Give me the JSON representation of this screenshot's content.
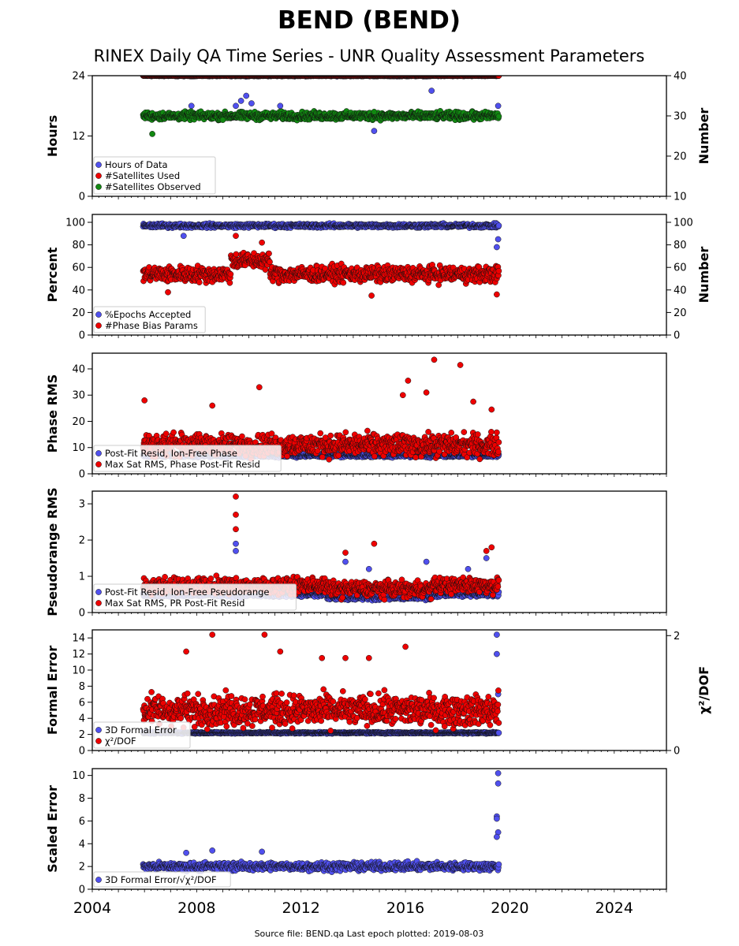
{
  "title": "BEND (BEND)",
  "subtitle": "RINEX Daily QA Time Series - UNR Quality Assessment Parameters",
  "footer": "Source file: BEND.qa Last epoch plotted: 2019-08-03",
  "colors": {
    "blue": "#5050ee",
    "red": "#ee0000",
    "green": "#118811",
    "frame": "#000000"
  },
  "chart_data": [
    {
      "type": "scatter",
      "xlim": [
        2004,
        2026
      ],
      "x_ticks": [
        "2004",
        "2008",
        "2012",
        "2016",
        "2020",
        "2024"
      ],
      "ylabel": "Hours",
      "ylim": [
        0,
        24
      ],
      "y_ticks": [
        "0",
        "12",
        "24"
      ],
      "ylabel_right": "Number",
      "ylim_right": [
        10,
        40
      ],
      "y_ticks_right": [
        "10",
        "20",
        "30",
        "40"
      ],
      "legend_position": "lower-left",
      "data_range": [
        2005.95,
        2019.59
      ],
      "series": [
        {
          "name": "Hours of Data",
          "color": "#5050ee",
          "axis": "left",
          "base": 24,
          "noise": 0.1,
          "outliers": [
            [
              2009.5,
              18
            ],
            [
              2009.7,
              19
            ],
            [
              2009.9,
              20
            ],
            [
              2010.1,
              18.5
            ],
            [
              2007.8,
              18
            ],
            [
              2011.2,
              18
            ],
            [
              2014.8,
              13
            ],
            [
              2017.0,
              21
            ],
            [
              2019.55,
              18
            ]
          ]
        },
        {
          "name": "#Satellites Used",
          "color": "#ee0000",
          "axis": "right",
          "base": 40,
          "noise": 0.05,
          "outliers": []
        },
        {
          "name": "#Satellites Observed",
          "color": "#118811",
          "axis": "right",
          "base": 30,
          "noise": 0.8,
          "outliers": [
            [
              2006.3,
              25.5
            ],
            [
              2009.0,
              29
            ],
            [
              2014.8,
              31
            ]
          ]
        }
      ]
    },
    {
      "type": "scatter",
      "xlim": [
        2004,
        2026
      ],
      "ylabel": "Percent",
      "ylim": [
        0,
        107
      ],
      "y_ticks": [
        "0",
        "20",
        "40",
        "60",
        "80",
        "100"
      ],
      "ylabel_right": "Number",
      "ylim_right": [
        0,
        107
      ],
      "y_ticks_right": [
        "0",
        "20",
        "40",
        "60",
        "80",
        "100"
      ],
      "legend_position": "lower-left",
      "data_range": [
        2005.95,
        2019.59
      ],
      "series": [
        {
          "name": "%Epochs Accepted",
          "color": "#5050ee",
          "axis": "left",
          "base": 97,
          "noise": 1.5,
          "outliers": [
            [
              2019.5,
              78
            ],
            [
              2019.55,
              85
            ],
            [
              2007.5,
              88
            ]
          ]
        },
        {
          "name": "#Phase Bias Params",
          "color": "#ee0000",
          "axis": "right",
          "base": 54,
          "noise": 6,
          "outliers": [
            [
              2009.5,
              88
            ],
            [
              2010.5,
              82
            ],
            [
              2014.7,
              35
            ],
            [
              2019.5,
              36
            ],
            [
              2006.9,
              38
            ]
          ]
        }
      ]
    },
    {
      "type": "scatter",
      "xlim": [
        2004,
        2026
      ],
      "ylabel": "Phase RMS",
      "ylim": [
        0,
        46
      ],
      "y_ticks": [
        "0",
        "10",
        "20",
        "30",
        "40"
      ],
      "legend_position": "lower-left",
      "data_range": [
        2005.95,
        2019.59
      ],
      "series": [
        {
          "name": "Post-Fit Resid, Ion-Free Phase",
          "color": "#5050ee",
          "axis": "left",
          "base": 7,
          "noise": 0.6,
          "outliers": []
        },
        {
          "name": "Max Sat RMS, Phase Post-Fit Resid",
          "color": "#ee0000",
          "axis": "left",
          "base": 11,
          "noise": 3.5,
          "outliers": [
            [
              2006.0,
              28
            ],
            [
              2008.6,
              26
            ],
            [
              2010.4,
              33
            ],
            [
              2016.1,
              35.5
            ],
            [
              2017.1,
              43.5
            ],
            [
              2018.1,
              41.5
            ],
            [
              2016.8,
              31
            ],
            [
              2015.9,
              30
            ],
            [
              2018.6,
              27.5
            ],
            [
              2019.3,
              24.5
            ]
          ]
        }
      ]
    },
    {
      "type": "scatter",
      "xlim": [
        2004,
        2026
      ],
      "ylabel": "Pseudorange RMS",
      "ylim": [
        0,
        3.35
      ],
      "y_ticks": [
        "0",
        "1",
        "2",
        "3"
      ],
      "legend_position": "lower-left",
      "data_range": [
        2005.95,
        2019.59
      ],
      "series": [
        {
          "name": "Post-Fit Resid, Ion-Free Pseudorange",
          "color": "#5050ee",
          "axis": "left",
          "base": 0.5,
          "noise": 0.06,
          "outliers": [
            [
              2009.5,
              1.9
            ],
            [
              2009.5,
              1.7
            ],
            [
              2013.7,
              1.4
            ],
            [
              2014.6,
              1.2
            ],
            [
              2016.8,
              1.4
            ],
            [
              2018.4,
              1.2
            ],
            [
              2019.1,
              1.5
            ]
          ]
        },
        {
          "name": "Max Sat RMS, PR Post-Fit Resid",
          "color": "#ee0000",
          "axis": "left",
          "base": 0.75,
          "noise": 0.18,
          "outliers": [
            [
              2009.5,
              3.2
            ],
            [
              2009.5,
              2.7
            ],
            [
              2009.5,
              2.3
            ],
            [
              2013.7,
              1.65
            ],
            [
              2014.8,
              1.9
            ],
            [
              2019.3,
              1.8
            ],
            [
              2019.1,
              1.7
            ]
          ]
        }
      ]
    },
    {
      "type": "scatter",
      "xlim": [
        2004,
        2026
      ],
      "ylabel": "Formal Error",
      "ylim": [
        0,
        15
      ],
      "y_ticks": [
        "0",
        "2",
        "4",
        "6",
        "8",
        "10",
        "12",
        "14"
      ],
      "ylabel_right": "χ²/DOF",
      "ylim_right": [
        0,
        2.1
      ],
      "y_ticks_right": [
        "0",
        "2"
      ],
      "legend_position": "lower-left",
      "data_range": [
        2005.95,
        2019.59
      ],
      "series": [
        {
          "name": "3D Formal Error",
          "color": "#5050ee",
          "axis": "left",
          "base": 2.2,
          "noise": 0.08,
          "outliers": [
            [
              2019.5,
              14.4
            ],
            [
              2019.5,
              12
            ],
            [
              2019.55,
              7
            ]
          ]
        },
        {
          "name": "χ²/DOF",
          "color": "#ee0000",
          "axis": "left",
          "base": 5,
          "noise": 1.6,
          "outliers": [
            [
              2008.6,
              14.4
            ],
            [
              2010.6,
              14.4
            ],
            [
              2007.6,
              12.3
            ],
            [
              2011.2,
              12.3
            ],
            [
              2016.0,
              12.9
            ],
            [
              2013.7,
              11.5
            ],
            [
              2014.6,
              11.5
            ],
            [
              2012.8,
              11.5
            ]
          ]
        }
      ]
    },
    {
      "type": "scatter",
      "xlim": [
        2004,
        2026
      ],
      "ylabel": "Scaled Error",
      "ylim": [
        0,
        10.6
      ],
      "y_ticks": [
        "0",
        "2",
        "4",
        "6",
        "8",
        "10"
      ],
      "legend_position": "lower-left",
      "data_range": [
        2005.95,
        2019.59
      ],
      "series": [
        {
          "name": "3D Formal Error/√χ²/DOF",
          "color": "#5050ee",
          "axis": "left",
          "base": 2.0,
          "noise": 0.3,
          "outliers": [
            [
              2019.55,
              10.2
            ],
            [
              2019.55,
              9.3
            ],
            [
              2019.5,
              6.4
            ],
            [
              2019.5,
              6.2
            ],
            [
              2019.55,
              5
            ],
            [
              2019.5,
              4.6
            ],
            [
              2008.6,
              3.4
            ],
            [
              2010.5,
              3.3
            ],
            [
              2007.6,
              3.2
            ]
          ]
        }
      ]
    }
  ]
}
